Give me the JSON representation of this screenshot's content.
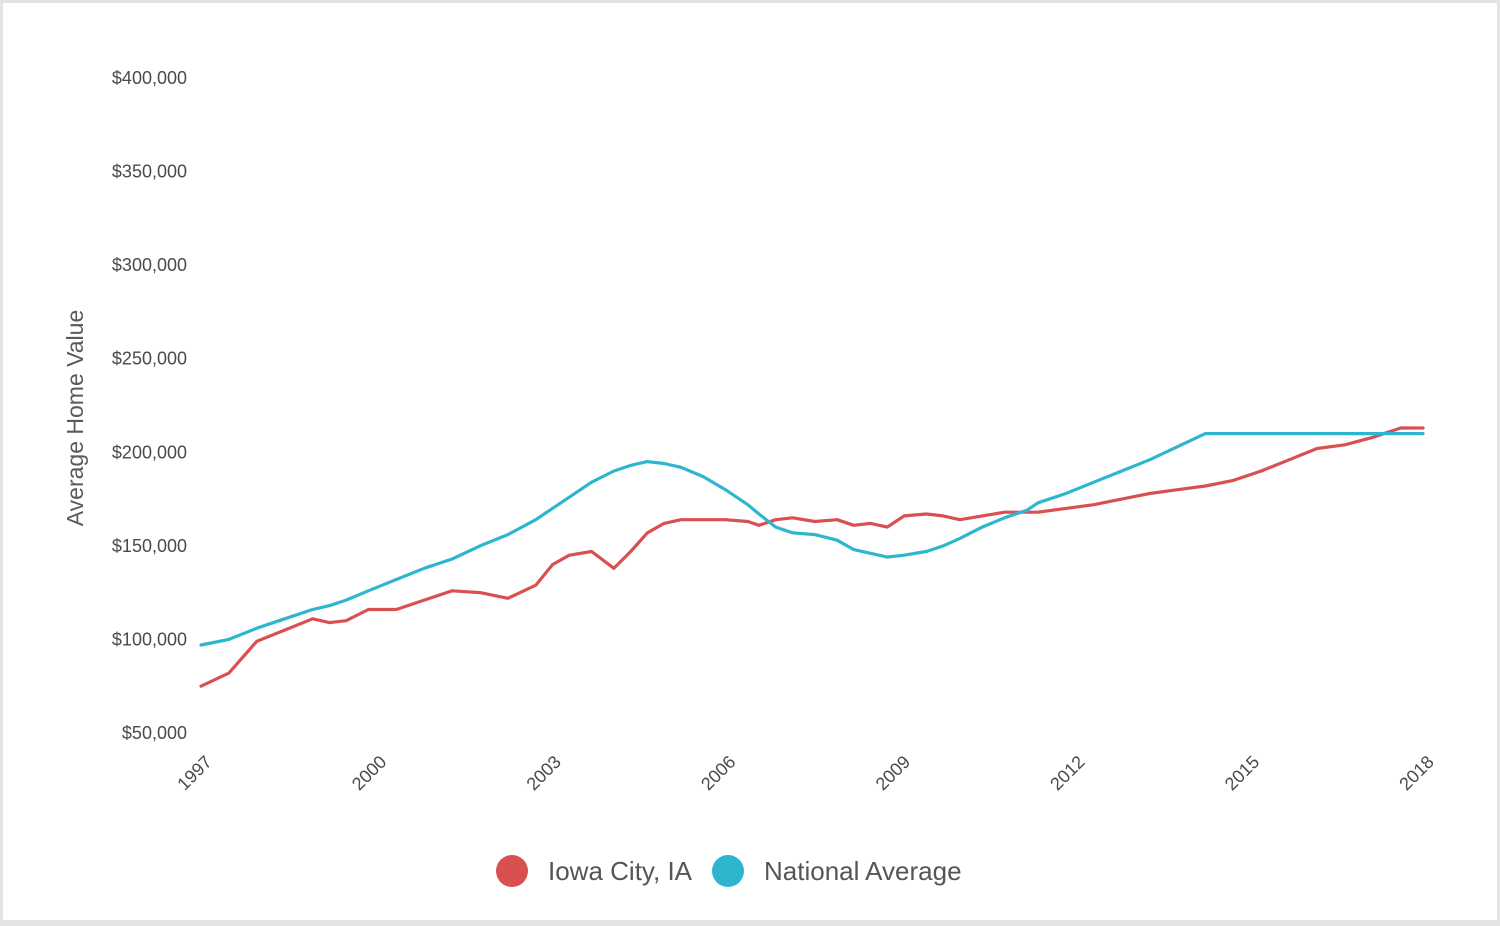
{
  "chart_data": {
    "type": "line",
    "title": "",
    "xlabel": "",
    "ylabel": "Average Home Value",
    "x_ticks": [
      "1997",
      "2000",
      "2003",
      "2006",
      "2009",
      "2012",
      "2015",
      "2018"
    ],
    "y_ticks": [
      "$50,000",
      "$100,000",
      "$150,000",
      "$200,000",
      "$250,000",
      "$300,000",
      "$350,000",
      "$400,000"
    ],
    "xlim": [
      1997,
      2018.9
    ],
    "ylim": [
      50000,
      400000
    ],
    "grid": false,
    "legend_position": "bottom-center",
    "x": [
      1997.0,
      1997.5,
      1998.0,
      1998.5,
      1999.0,
      1999.3,
      1999.6,
      2000.0,
      2000.5,
      2001.0,
      2001.5,
      2002.0,
      2002.5,
      2003.0,
      2003.3,
      2003.6,
      2004.0,
      2004.4,
      2004.7,
      2005.0,
      2005.3,
      2005.6,
      2006.0,
      2006.4,
      2006.8,
      2007.0,
      2007.3,
      2007.6,
      2008.0,
      2008.4,
      2008.7,
      2009.0,
      2009.3,
      2009.6,
      2010.0,
      2010.3,
      2010.6,
      2011.0,
      2011.4,
      2011.8,
      2012.0,
      2012.5,
      2013.0,
      2013.5,
      2014.0,
      2014.5,
      2015.0,
      2015.5,
      2016.0,
      2016.5,
      2017.0,
      2017.5,
      2018.0,
      2018.5,
      2018.9
    ],
    "series": [
      {
        "name": "Iowa City, IA",
        "color": "#d95050",
        "values": [
          75000,
          82000,
          99000,
          105000,
          111000,
          109000,
          110000,
          116000,
          116000,
          121000,
          126000,
          125000,
          122000,
          129000,
          140000,
          145000,
          147000,
          138000,
          147000,
          157000,
          162000,
          164000,
          164000,
          164000,
          163000,
          161000,
          164000,
          165000,
          163000,
          164000,
          161000,
          162000,
          160000,
          166000,
          167000,
          166000,
          164000,
          166000,
          168000,
          168000,
          168000,
          170000,
          172000,
          175000,
          178000,
          180000,
          182000,
          185000,
          190000,
          196000,
          202000,
          204000,
          208000,
          213000,
          213000
        ]
      },
      {
        "name": "National Average",
        "color": "#2fb6cf",
        "values": [
          97000,
          100000,
          106000,
          111000,
          116000,
          118000,
          121000,
          126000,
          132000,
          138000,
          143000,
          150000,
          156000,
          164000,
          170000,
          176000,
          184000,
          190000,
          193000,
          195000,
          194000,
          192000,
          187000,
          180000,
          172000,
          167000,
          160000,
          157000,
          156000,
          153000,
          148000,
          146000,
          144000,
          145000,
          147000,
          150000,
          154000,
          160000,
          165000,
          169000,
          173000,
          178000,
          184000,
          190000,
          196000,
          203000,
          210000,
          210000,
          210000,
          210000,
          210000,
          210000,
          210000,
          210000,
          210000
        ]
      }
    ]
  }
}
